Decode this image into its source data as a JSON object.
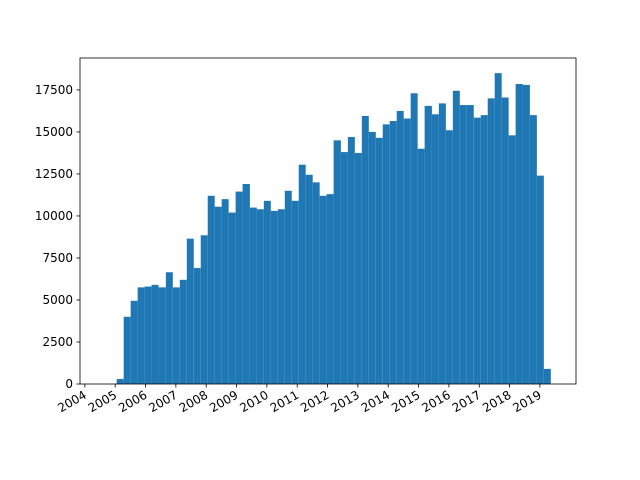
{
  "chart_data": {
    "type": "histogram",
    "bins": [
      2005.05,
      2005.28,
      2005.51,
      2005.74,
      2005.97,
      2006.2,
      2006.43,
      2006.67,
      2006.9,
      2007.13,
      2007.36,
      2007.59,
      2007.82,
      2008.05,
      2008.28,
      2008.51,
      2008.74,
      2008.97,
      2009.2,
      2009.44,
      2009.67,
      2009.9,
      2010.13,
      2010.36,
      2010.59,
      2010.82,
      2011.05,
      2011.28,
      2011.51,
      2011.74,
      2011.97,
      2012.2,
      2012.44,
      2012.67,
      2012.9,
      2013.13,
      2013.36,
      2013.59,
      2013.82,
      2014.05,
      2014.28,
      2014.51,
      2014.74,
      2014.97,
      2015.2,
      2015.44,
      2015.67,
      2015.9,
      2016.13,
      2016.36,
      2016.59,
      2016.82,
      2017.05,
      2017.28,
      2017.51,
      2017.74,
      2017.97,
      2018.2,
      2018.44,
      2018.67,
      2018.9,
      2019.13,
      2019.36
    ],
    "values": [
      300,
      4000,
      4950,
      5750,
      5800,
      5900,
      5750,
      6650,
      5750,
      6200,
      8650,
      6900,
      8850,
      11200,
      10550,
      11000,
      10200,
      11450,
      11900,
      10500,
      10400,
      10900,
      10300,
      10400,
      11500,
      10900,
      13050,
      12450,
      12000,
      11200,
      11300,
      14500,
      13800,
      14700,
      13750,
      15950,
      15000,
      14650,
      15450,
      15650,
      16250,
      15800,
      17300,
      14000,
      16550,
      16050,
      16700,
      15100,
      17450,
      16600,
      16600,
      15850,
      16000,
      17000,
      18500,
      17050,
      14800,
      17850,
      17800,
      16000,
      12400,
      900
    ],
    "color": "#1f77b4",
    "xlim": [
      2003.84,
      2020.19
    ],
    "xticks": [
      2004,
      2005,
      2006,
      2007,
      2008,
      2009,
      2010,
      2011,
      2012,
      2013,
      2014,
      2015,
      2016,
      2017,
      2018,
      2019
    ],
    "ylim": [
      0,
      19400
    ],
    "yticks": [
      0,
      2500,
      5000,
      7500,
      10000,
      12500,
      15000,
      17500
    ]
  }
}
